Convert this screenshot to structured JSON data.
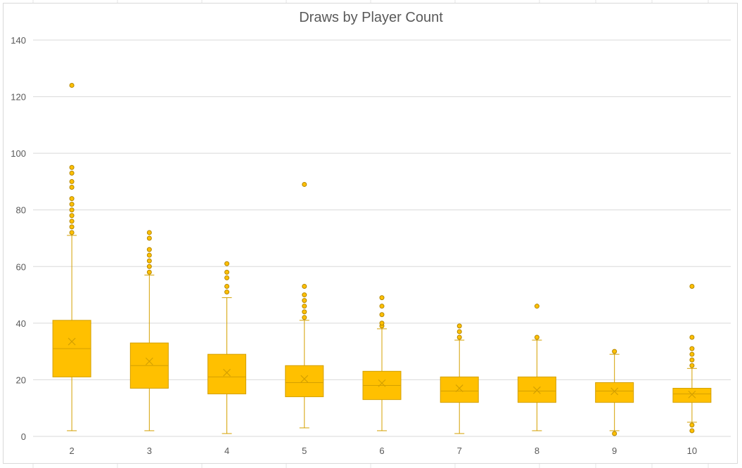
{
  "chart_data": {
    "type": "box",
    "title": "Draws by Player Count",
    "xlabel": "",
    "ylabel": "",
    "ylim": [
      0,
      140
    ],
    "yticks": [
      0,
      20,
      40,
      60,
      80,
      100,
      120,
      140
    ],
    "grid": true,
    "legend": "none",
    "colors": {
      "fill": "#ffc000",
      "stroke": "#d4a000",
      "grid": "#d9d9d9",
      "text": "#595959"
    },
    "categories": [
      "2",
      "3",
      "4",
      "5",
      "6",
      "7",
      "8",
      "9",
      "10"
    ],
    "boxes": [
      {
        "category": "2",
        "min": 2,
        "q1": 21,
        "median": 31,
        "q3": 41,
        "max": 71,
        "mean": 33.5,
        "outliers": [
          72,
          74,
          76,
          78,
          80,
          82,
          84,
          88,
          90,
          93,
          95,
          124
        ]
      },
      {
        "category": "3",
        "min": 2,
        "q1": 17,
        "median": 25,
        "q3": 33,
        "max": 57,
        "mean": 26.5,
        "outliers": [
          58,
          60,
          62,
          64,
          66,
          70,
          72
        ]
      },
      {
        "category": "4",
        "min": 1,
        "q1": 15,
        "median": 21,
        "q3": 29,
        "max": 49,
        "mean": 22.5,
        "outliers": [
          51,
          53,
          56,
          58,
          61
        ]
      },
      {
        "category": "5",
        "min": 3,
        "q1": 14,
        "median": 19,
        "q3": 25,
        "max": 41,
        "mean": 20.3,
        "outliers": [
          42,
          44,
          46,
          48,
          50,
          53,
          89
        ]
      },
      {
        "category": "6",
        "min": 2,
        "q1": 13,
        "median": 18,
        "q3": 23,
        "max": 38,
        "mean": 18.8,
        "outliers": [
          39,
          40,
          43,
          46,
          49
        ]
      },
      {
        "category": "7",
        "min": 1,
        "q1": 12,
        "median": 16,
        "q3": 21,
        "max": 34,
        "mean": 17.0,
        "outliers": [
          35,
          37,
          39
        ]
      },
      {
        "category": "8",
        "min": 2,
        "q1": 12,
        "median": 16,
        "q3": 21,
        "max": 34,
        "mean": 16.3,
        "outliers": [
          35,
          46
        ]
      },
      {
        "category": "9",
        "min": 2,
        "q1": 12,
        "median": 16,
        "q3": 19,
        "max": 29,
        "mean": 15.9,
        "outliers": [
          1,
          30
        ]
      },
      {
        "category": "10",
        "min": 5,
        "q1": 12,
        "median": 15,
        "q3": 17,
        "max": 24,
        "mean": 14.8,
        "outliers": [
          2,
          4,
          25,
          27,
          29,
          31,
          35,
          53
        ]
      }
    ]
  }
}
